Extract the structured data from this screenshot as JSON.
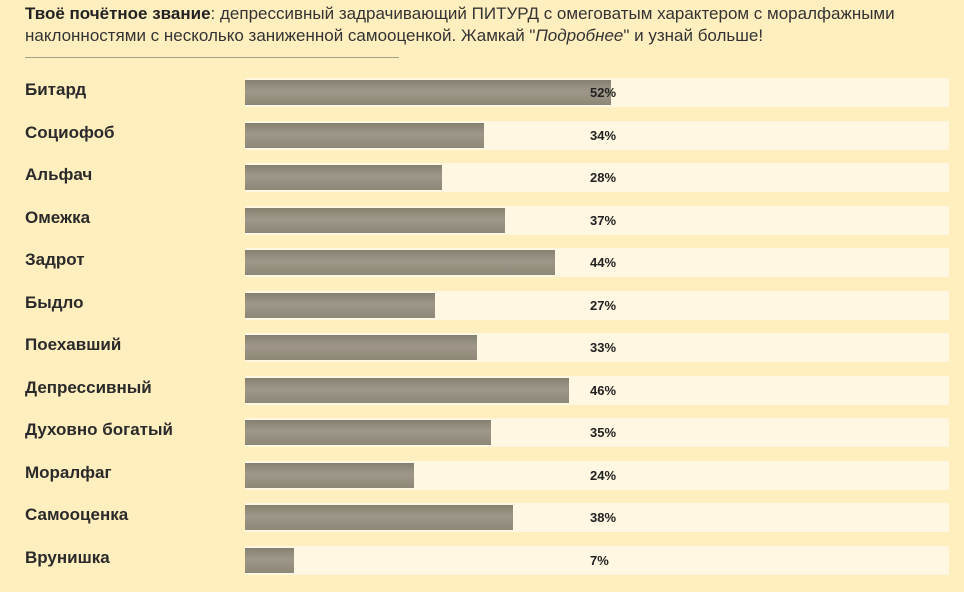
{
  "header": {
    "lead": "Твоё почётное звание",
    "text_part1": ": депрессивный задрачивающий ПИТУРД с омеговатым характером с моралфажными наклонностями с несколько заниженной самооценкой. Жамкай \"",
    "link_text": "Подробнее",
    "text_part2": "\" и узнай больше!"
  },
  "rows": [
    {
      "label": "Битард",
      "percent": 52,
      "percent_label": "52%"
    },
    {
      "label": "Социофоб",
      "percent": 34,
      "percent_label": "34%"
    },
    {
      "label": "Альфач",
      "percent": 28,
      "percent_label": "28%"
    },
    {
      "label": "Омежка",
      "percent": 37,
      "percent_label": "37%"
    },
    {
      "label": "Задрот",
      "percent": 44,
      "percent_label": "44%"
    },
    {
      "label": "Быдло",
      "percent": 27,
      "percent_label": "27%"
    },
    {
      "label": "Поехавший",
      "percent": 33,
      "percent_label": "33%"
    },
    {
      "label": "Депрессивный",
      "percent": 46,
      "percent_label": "46%"
    },
    {
      "label": "Духовно богатый",
      "percent": 35,
      "percent_label": "35%"
    },
    {
      "label": "Моралфаг",
      "percent": 24,
      "percent_label": "24%"
    },
    {
      "label": "Самооценка",
      "percent": 38,
      "percent_label": "38%"
    },
    {
      "label": "Врунишка",
      "percent": 7,
      "percent_label": "7%"
    }
  ]
}
